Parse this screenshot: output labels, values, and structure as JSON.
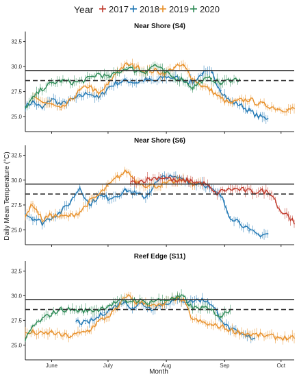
{
  "chart_data": {
    "type": "line",
    "legend": {
      "title": "Year",
      "position": "top",
      "entries": [
        {
          "label": "2017",
          "color": "#c0392b"
        },
        {
          "label": "2018",
          "color": "#1f77b4"
        },
        {
          "label": "2019",
          "color": "#e8902a"
        },
        {
          "label": "2020",
          "color": "#2e8b57"
        }
      ]
    },
    "ylabel": "Daily Mean Temperature (°C)",
    "xlabel": "Month",
    "x_ticks": [
      "Jun 15",
      "Jul 15",
      "Aug 15",
      "Sep 15",
      "Oct 15"
    ],
    "x_tick_labels": [
      "June",
      "July",
      "Aug",
      "Sep",
      "Oct"
    ],
    "xlim": [
      "2000-06-01",
      "2000-10-22"
    ],
    "ylim": [
      23.5,
      33.5
    ],
    "y_ticks": [
      25.0,
      27.5,
      30.0,
      32.5
    ],
    "y_tick_labels": [
      "25.0",
      "27.5",
      "30.0",
      "32.5"
    ],
    "reference_lines": [
      {
        "style": "solid",
        "y": 29.6
      },
      {
        "style": "dashed",
        "y": 28.6
      }
    ],
    "grid": false,
    "panels": [
      {
        "title": "Near Shore (S4)",
        "series": [
          {
            "name": "2017",
            "x": [],
            "y": []
          },
          {
            "name": "2018",
            "x": [
              "06-01",
              "06-05",
              "06-10",
              "06-15",
              "06-20",
              "06-25",
              "06-30",
              "07-05",
              "07-10",
              "07-15",
              "07-20",
              "07-25",
              "07-30",
              "08-04",
              "08-09",
              "08-14",
              "08-19",
              "08-24",
              "08-29",
              "09-03",
              "09-08",
              "09-13",
              "09-18",
              "09-23",
              "09-28",
              "10-03",
              "10-08"
            ],
            "y": [
              26.0,
              26.5,
              25.8,
              26.8,
              26.2,
              26.6,
              27.0,
              27.4,
              26.8,
              27.9,
              28.4,
              28.6,
              28.4,
              28.7,
              28.5,
              29.0,
              28.9,
              28.7,
              28.4,
              29.3,
              29.4,
              27.6,
              26.5,
              26.2,
              25.6,
              25.0,
              24.8
            ]
          },
          {
            "name": "2019",
            "x": [
              "06-05",
              "06-10",
              "06-15",
              "06-20",
              "06-25",
              "06-30",
              "07-05",
              "07-10",
              "07-15",
              "07-20",
              "07-25",
              "07-30",
              "08-04",
              "08-09",
              "08-14",
              "08-19",
              "08-24",
              "08-29",
              "09-03",
              "09-08",
              "09-13",
              "09-18",
              "09-23",
              "09-28",
              "10-03",
              "10-08",
              "10-13",
              "10-18",
              "10-22"
            ],
            "y": [
              26.8,
              26.5,
              26.2,
              25.7,
              26.6,
              27.6,
              28.1,
              27.2,
              28.2,
              29.6,
              30.2,
              30.0,
              29.5,
              29.6,
              29.3,
              29.9,
              30.1,
              28.8,
              28.1,
              27.6,
              26.8,
              26.3,
              26.6,
              26.7,
              26.3,
              26.1,
              25.8,
              25.7,
              25.8
            ]
          },
          {
            "name": "2020",
            "x": [
              "06-01",
              "06-05",
              "06-10",
              "06-15",
              "06-20",
              "06-25",
              "06-30",
              "07-05",
              "07-10",
              "07-15",
              "07-20",
              "07-25",
              "07-30",
              "08-04",
              "08-09",
              "08-14",
              "08-19",
              "08-24",
              "08-29",
              "09-03",
              "09-08",
              "09-13",
              "09-18",
              "09-23"
            ],
            "y": [
              25.9,
              26.8,
              27.8,
              28.3,
              28.6,
              28.4,
              28.5,
              28.8,
              29.3,
              28.9,
              29.4,
              29.9,
              29.6,
              29.5,
              30.2,
              29.4,
              28.9,
              28.7,
              27.9,
              28.6,
              28.8,
              28.3,
              28.7,
              28.7
            ]
          }
        ]
      },
      {
        "title": "Near Shore (S6)",
        "series": [
          {
            "name": "2017",
            "x": [
              "07-27",
              "08-01",
              "08-06",
              "08-11",
              "08-16",
              "08-21",
              "08-26",
              "08-31",
              "09-05",
              "09-10",
              "09-15",
              "09-20",
              "09-25",
              "09-30",
              "10-05",
              "10-10",
              "10-15",
              "10-19",
              "10-22"
            ],
            "y": [
              29.7,
              29.9,
              30.1,
              30.3,
              30.2,
              29.8,
              30.0,
              29.8,
              29.6,
              28.6,
              29.0,
              29.1,
              29.0,
              28.8,
              28.9,
              28.7,
              26.8,
              26.5,
              25.6
            ]
          },
          {
            "name": "2018",
            "x": [
              "06-01",
              "06-05",
              "06-10",
              "06-15",
              "06-20",
              "06-25",
              "06-30",
              "07-05",
              "07-10",
              "07-15",
              "07-20",
              "07-25",
              "07-30",
              "08-04",
              "08-09",
              "08-14",
              "08-19",
              "08-24",
              "08-29",
              "09-03",
              "09-08",
              "09-13",
              "09-18",
              "09-23",
              "09-28",
              "10-03",
              "10-08"
            ],
            "y": [
              26.6,
              26.2,
              25.7,
              26.3,
              26.8,
              27.8,
              29.3,
              27.5,
              28.4,
              28.2,
              28.5,
              29.0,
              28.6,
              28.3,
              29.6,
              30.4,
              30.2,
              30.2,
              29.6,
              29.8,
              29.0,
              28.4,
              26.3,
              25.8,
              24.9,
              24.5,
              24.6
            ]
          },
          {
            "name": "2019",
            "x": [
              "06-01",
              "06-05",
              "06-10",
              "06-15",
              "06-20",
              "06-25",
              "06-30",
              "07-05",
              "07-10",
              "07-15",
              "07-20",
              "07-25",
              "07-30",
              "08-04",
              "08-09",
              "08-14",
              "08-19",
              "08-24",
              "08-29",
              "09-03"
            ],
            "y": [
              26.5,
              27.6,
              26.0,
              26.5,
              26.3,
              26.4,
              26.8,
              27.8,
              28.5,
              29.4,
              30.3,
              30.9,
              29.9,
              29.5,
              29.4,
              29.6,
              29.8,
              30.0,
              29.7,
              29.6
            ]
          },
          {
            "name": "2020",
            "x": [],
            "y": []
          }
        ]
      },
      {
        "title": "Reef Edge (S11)",
        "series": [
          {
            "name": "2017",
            "x": [],
            "y": []
          },
          {
            "name": "2018",
            "x": [
              "06-28",
              "07-03",
              "07-08",
              "07-13",
              "07-18",
              "07-23",
              "07-28",
              "08-02",
              "08-07",
              "08-12",
              "08-17",
              "08-22",
              "08-27",
              "09-01",
              "09-06",
              "09-11",
              "09-16",
              "09-21",
              "09-26",
              "10-01"
            ],
            "y": [
              27.4,
              27.2,
              27.6,
              28.3,
              28.8,
              29.4,
              28.8,
              29.2,
              28.7,
              29.1,
              29.4,
              29.6,
              29.4,
              29.6,
              29.5,
              28.3,
              26.9,
              26.3,
              25.9,
              25.7
            ]
          },
          {
            "name": "2019",
            "x": [
              "06-01",
              "06-05",
              "06-10",
              "06-15",
              "06-20",
              "06-25",
              "06-30",
              "07-05",
              "07-10",
              "07-15",
              "07-20",
              "07-25",
              "07-30",
              "08-04",
              "08-09",
              "08-14",
              "08-19",
              "08-24",
              "08-29",
              "09-03",
              "09-08",
              "09-13",
              "09-18",
              "09-23",
              "09-28",
              "10-03",
              "10-08",
              "10-13",
              "10-18",
              "10-22"
            ],
            "y": [
              26.1,
              26.3,
              26.1,
              26.3,
              26.0,
              25.9,
              26.2,
              26.5,
              27.4,
              27.9,
              28.7,
              30.1,
              29.3,
              29.3,
              28.9,
              29.1,
              29.8,
              29.5,
              27.6,
              27.3,
              27.0,
              26.9,
              26.5,
              26.3,
              26.1,
              26.0,
              25.9,
              25.8,
              25.7,
              25.7
            ]
          },
          {
            "name": "2020",
            "x": [
              "06-01",
              "06-05",
              "06-10",
              "06-15",
              "06-20",
              "06-25",
              "06-30",
              "07-05",
              "07-10",
              "07-15",
              "07-20",
              "07-25",
              "07-30",
              "08-04",
              "08-09",
              "08-14",
              "08-19",
              "08-24",
              "08-29",
              "09-03",
              "09-08",
              "09-13",
              "09-18"
            ],
            "y": [
              25.5,
              26.9,
              27.6,
              28.2,
              28.6,
              28.6,
              28.5,
              28.5,
              28.6,
              29.0,
              29.4,
              29.4,
              29.6,
              29.3,
              29.5,
              29.6,
              29.7,
              29.9,
              28.7,
              28.8,
              28.5,
              27.9,
              28.6
            ]
          }
        ]
      }
    ]
  }
}
